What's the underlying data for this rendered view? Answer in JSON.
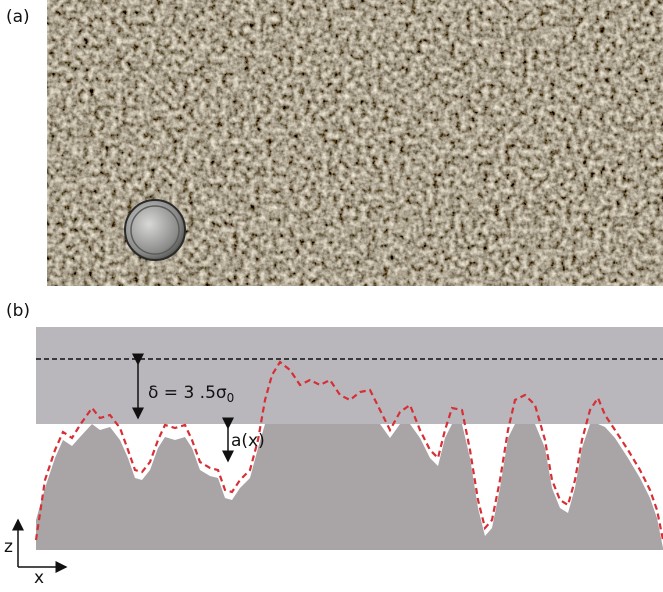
{
  "panel_a": {
    "label": "(a)"
  },
  "panel_b": {
    "label": "(b)",
    "delta_label": {
      "main": "δ = 3 .5σ",
      "subscript": "0"
    },
    "gap_label": "a(x)",
    "axis_z": "z",
    "axis_x": "x"
  }
}
